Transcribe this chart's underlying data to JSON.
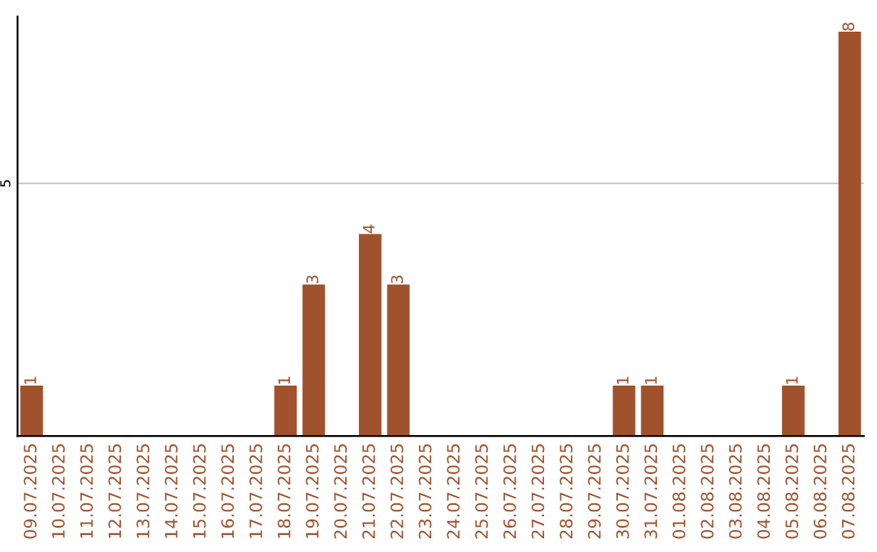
{
  "chart_data": {
    "type": "bar",
    "categories": [
      "09.07.2025",
      "10.07.2025",
      "11.07.2025",
      "12.07.2025",
      "13.07.2025",
      "14.07.2025",
      "15.07.2025",
      "16.07.2025",
      "17.07.2025",
      "18.07.2025",
      "19.07.2025",
      "20.07.2025",
      "21.07.2025",
      "22.07.2025",
      "23.07.2025",
      "24.07.2025",
      "25.07.2025",
      "26.07.2025",
      "27.07.2025",
      "28.07.2025",
      "29.07.2025",
      "30.07.2025",
      "31.07.2025",
      "01.08.2025",
      "02.08.2025",
      "03.08.2025",
      "04.08.2025",
      "05.08.2025",
      "06.08.2025",
      "07.08.2025"
    ],
    "values": [
      1,
      0,
      0,
      0,
      0,
      0,
      0,
      0,
      0,
      1,
      3,
      0,
      4,
      3,
      0,
      0,
      0,
      0,
      0,
      0,
      0,
      1,
      1,
      0,
      0,
      0,
      0,
      1,
      0,
      8
    ],
    "value_labels": [
      "1",
      null,
      null,
      null,
      null,
      null,
      null,
      null,
      null,
      "1",
      "3",
      null,
      "4",
      "3",
      null,
      null,
      null,
      null,
      null,
      null,
      null,
      "1",
      "1",
      null,
      null,
      null,
      null,
      "1",
      null,
      "8"
    ],
    "color": "#a0522d",
    "ylim": [
      0,
      8.3
    ],
    "yticks": [
      5
    ],
    "grid": "y"
  }
}
